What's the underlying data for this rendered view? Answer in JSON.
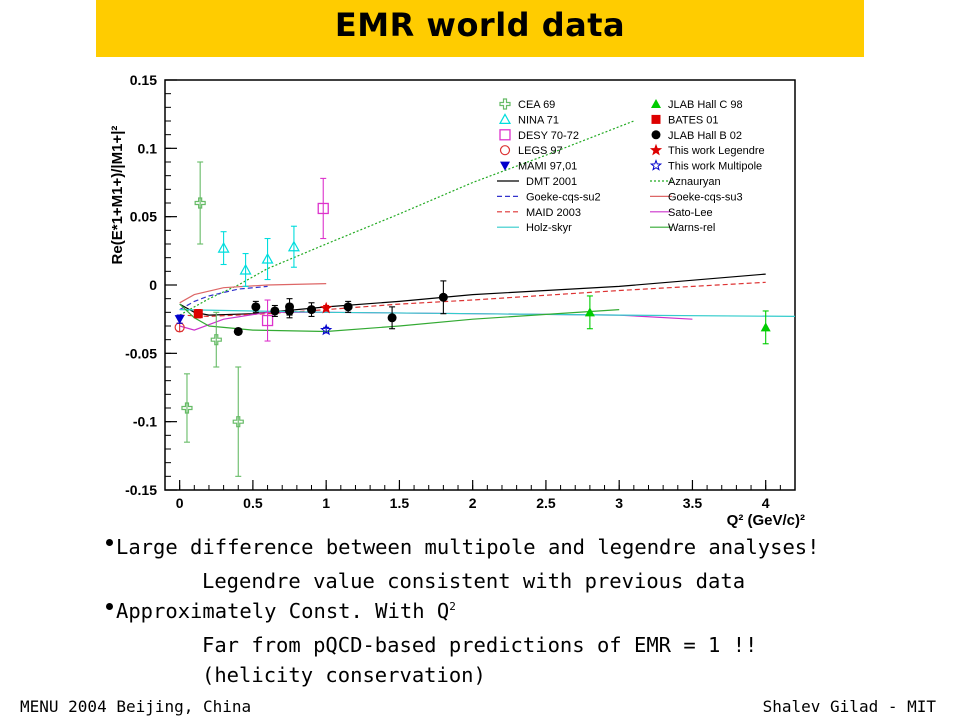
{
  "title": "EMR world data",
  "chart_data": {
    "type": "scatter",
    "ylabel": "Re(E*1+M1+)/|M1+|²",
    "xlabel": "Q² (GeV/c)²",
    "xlim": [
      -0.1,
      4.2
    ],
    "ylim": [
      -0.15,
      0.15
    ],
    "x_ticks": [
      0,
      0.5,
      1,
      1.5,
      2,
      2.5,
      3,
      3.5,
      4
    ],
    "x_tick_labels": [
      "0",
      "0.5",
      "1",
      "1.5",
      "2",
      "2.5",
      "3",
      "3.5",
      "4"
    ],
    "y_ticks": [
      -0.15,
      -0.1,
      -0.05,
      0,
      0.05,
      0.1,
      0.15
    ],
    "y_tick_labels": [
      "-0.15",
      "-0.1",
      "-0.05",
      "0",
      "0.05",
      "0.1",
      "0.15"
    ],
    "legend_position": "top",
    "series": [
      {
        "name": "CEA 69",
        "marker": "open-cross",
        "color": "#66bb66",
        "points": [
          [
            0.14,
            0.06,
            0.03
          ],
          [
            0.05,
            -0.09,
            0.025
          ],
          [
            0.25,
            -0.04,
            0.02
          ],
          [
            0.4,
            -0.1,
            0.04
          ]
        ]
      },
      {
        "name": "NINA 71",
        "marker": "open-triangle",
        "color": "#00dddd",
        "points": [
          [
            0.3,
            0.027,
            0.012
          ],
          [
            0.45,
            0.011,
            0.012
          ],
          [
            0.6,
            0.019,
            0.015
          ],
          [
            0.78,
            0.028,
            0.015
          ]
        ]
      },
      {
        "name": "DESY 70-72",
        "marker": "open-square",
        "color": "#dd33cc",
        "points": [
          [
            0.98,
            0.056,
            0.022
          ],
          [
            0.6,
            -0.026,
            0.015
          ]
        ]
      },
      {
        "name": "LEGS 97",
        "marker": "open-circle",
        "color": "#dd3333",
        "points": [
          [
            0.0,
            -0.031,
            0.003
          ]
        ]
      },
      {
        "name": "MAMI 97,01",
        "marker": "down-triangle",
        "color": "#0000cc",
        "points": [
          [
            0.0,
            -0.025,
            0.003
          ]
        ]
      },
      {
        "name": "JLAB Hall C 98",
        "marker": "up-triangle",
        "color": "#00cc00",
        "points": [
          [
            2.8,
            -0.02,
            0.012
          ],
          [
            4.0,
            -0.031,
            0.012
          ]
        ]
      },
      {
        "name": "BATES 01",
        "marker": "square",
        "color": "#dd0000",
        "points": [
          [
            0.127,
            -0.021,
            0.003
          ]
        ]
      },
      {
        "name": "JLAB Hall B 02",
        "marker": "circle",
        "color": "#000000",
        "points": [
          [
            0.4,
            -0.034,
            0.002
          ],
          [
            0.52,
            -0.016,
            0.004
          ],
          [
            0.65,
            -0.019,
            0.004
          ],
          [
            0.75,
            -0.016,
            0.006
          ],
          [
            0.75,
            -0.019,
            0.005
          ],
          [
            0.9,
            -0.018,
            0.005
          ],
          [
            1.15,
            -0.016,
            0.004
          ],
          [
            1.45,
            -0.024,
            0.008
          ],
          [
            1.8,
            -0.009,
            0.012
          ]
        ]
      },
      {
        "name": "This work Legendre",
        "marker": "star",
        "color": "#dd0000",
        "points": [
          [
            1.0,
            -0.017,
            0.002
          ]
        ]
      },
      {
        "name": "This work Multipole",
        "marker": "open-star",
        "color": "#0000cc",
        "points": [
          [
            1.0,
            -0.033,
            0.002
          ]
        ]
      }
    ],
    "curves": [
      {
        "name": "DMT 2001",
        "color": "#000000",
        "dash": "",
        "points": [
          [
            0.0,
            -0.014
          ],
          [
            0.1,
            -0.02
          ],
          [
            0.2,
            -0.022
          ],
          [
            0.5,
            -0.021
          ],
          [
            1.0,
            -0.016
          ],
          [
            1.5,
            -0.012
          ],
          [
            2.0,
            -0.007
          ],
          [
            3.0,
            -0.001
          ],
          [
            4.0,
            0.008
          ]
        ]
      },
      {
        "name": "Aznauryan",
        "color": "#22aa22",
        "dash": "2,2",
        "points": [
          [
            0.0,
            -0.022
          ],
          [
            0.2,
            -0.01
          ],
          [
            0.4,
            0.0
          ],
          [
            0.6,
            0.012
          ],
          [
            1.0,
            0.03
          ],
          [
            1.5,
            0.052
          ],
          [
            2.0,
            0.075
          ],
          [
            2.5,
            0.095
          ],
          [
            3.1,
            0.12
          ]
        ]
      },
      {
        "name": "Goeke-cqs-su2",
        "color": "#3333cc",
        "dash": "5,3",
        "points": [
          [
            0.0,
            -0.018
          ],
          [
            0.1,
            -0.012
          ],
          [
            0.2,
            -0.008
          ],
          [
            0.4,
            -0.003
          ],
          [
            0.6,
            -0.001
          ]
        ]
      },
      {
        "name": "Goeke-cqs-su3",
        "color": "#dd6666",
        "dash": "",
        "points": [
          [
            0.0,
            -0.013
          ],
          [
            0.1,
            -0.007
          ],
          [
            0.3,
            -0.002
          ],
          [
            0.6,
            0.0
          ],
          [
            1.0,
            0.001
          ]
        ]
      },
      {
        "name": "MAID 2003",
        "color": "#dd3333",
        "dash": "5,3",
        "points": [
          [
            0.0,
            -0.022
          ],
          [
            0.2,
            -0.023
          ],
          [
            0.6,
            -0.021
          ],
          [
            1.0,
            -0.018
          ],
          [
            1.5,
            -0.014
          ],
          [
            2.0,
            -0.011
          ],
          [
            3.0,
            -0.004
          ],
          [
            4.0,
            0.002
          ]
        ]
      },
      {
        "name": "Sato-Lee",
        "color": "#cc33cc",
        "dash": "",
        "points": [
          [
            0.0,
            -0.03
          ],
          [
            0.1,
            -0.033
          ],
          [
            0.3,
            -0.025
          ],
          [
            0.6,
            -0.02
          ],
          [
            1.0,
            -0.02
          ],
          [
            2.0,
            -0.021
          ],
          [
            3.0,
            -0.022
          ],
          [
            3.5,
            -0.025
          ]
        ]
      },
      {
        "name": "Holz-skyr",
        "color": "#33cccc",
        "dash": "",
        "points": [
          [
            0.0,
            -0.018
          ],
          [
            0.5,
            -0.019
          ],
          [
            1.0,
            -0.02
          ],
          [
            2.0,
            -0.021
          ],
          [
            3.0,
            -0.022
          ],
          [
            4.2,
            -0.023
          ]
        ]
      },
      {
        "name": "Warns-rel",
        "color": "#33aa33",
        "dash": "",
        "points": [
          [
            0.0,
            -0.014
          ],
          [
            0.1,
            -0.024
          ],
          [
            0.2,
            -0.03
          ],
          [
            0.5,
            -0.033
          ],
          [
            1.0,
            -0.034
          ],
          [
            1.5,
            -0.03
          ],
          [
            2.0,
            -0.025
          ],
          [
            3.0,
            -0.018
          ]
        ]
      }
    ]
  },
  "bullets": [
    {
      "bullet": true,
      "text": "Large difference between multipole and legendre analyses!"
    },
    {
      "bullet": false,
      "text": "Legendre value consistent with previous data"
    },
    {
      "bullet": true,
      "text": "Approximately Const. With Q",
      "sup": "2"
    },
    {
      "bullet": false,
      "text": "Far from pQCD-based predictions of EMR = 1 !!"
    },
    {
      "bullet": false,
      "text": "(helicity conservation)"
    }
  ],
  "footer": {
    "left": "MENU 2004 Beijing, China",
    "right": "Shalev Gilad - MIT"
  }
}
